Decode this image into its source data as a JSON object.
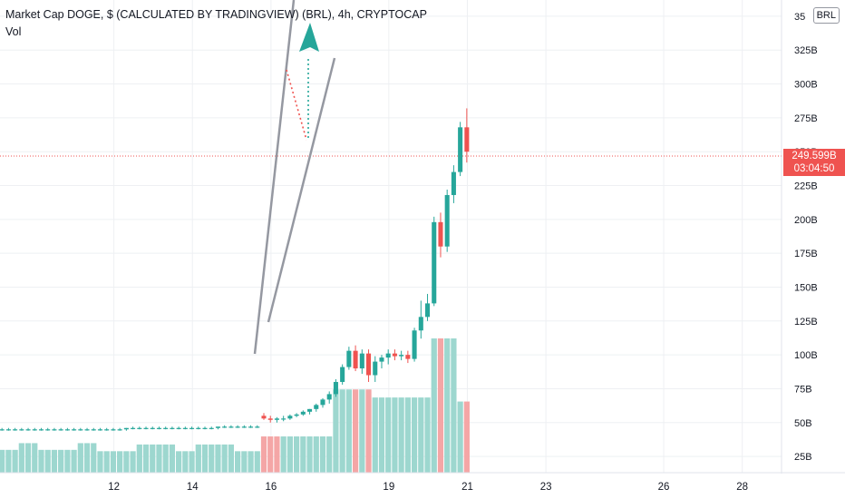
{
  "header": {
    "title": "Market Cap DOGE, $ (CALCULATED BY TRADINGVIEW) (BRL), 4h, CRYPTOCAP",
    "volume_label": "Vol"
  },
  "currency_button": "BRL",
  "last_price": {
    "price": "249.599B",
    "timer": "03:04:50"
  },
  "colors": {
    "up": "#26a69a",
    "down": "#ef5350",
    "up_volume": "#9dd7cf",
    "down_volume": "#f4a6a6",
    "grid": "#eef0f3",
    "trendline": "#9598a1",
    "arrow": "#26a69a"
  },
  "chart_data": {
    "type": "candlestick",
    "title": "Market Cap DOGE, $ (CALCULATED BY TRADINGVIEW) (BRL), 4h, CRYPTOCAP",
    "y_unit": "B",
    "y_ticks": [
      "25B",
      "50B",
      "75B",
      "100B",
      "125B",
      "150B",
      "175B",
      "200B",
      "225B",
      "250B",
      "275B",
      "300B",
      "325B",
      "35"
    ],
    "y_tick_values": [
      25,
      50,
      75,
      100,
      125,
      150,
      175,
      200,
      225,
      250,
      275,
      300,
      325,
      350
    ],
    "ylim": [
      13,
      362
    ],
    "x_ticks": [
      {
        "label": "12",
        "day": 12
      },
      {
        "label": "14",
        "day": 14
      },
      {
        "label": "16",
        "day": 16
      },
      {
        "label": "19",
        "day": 19
      },
      {
        "label": "21",
        "day": 21
      },
      {
        "label": "23",
        "day": 23
      },
      {
        "label": "26",
        "day": 26
      },
      {
        "label": "28",
        "day": 28
      }
    ],
    "xlim": [
      9.1,
      29
    ],
    "candle_interval_days": 0.1667,
    "first_candle_day": 9.15,
    "ohlc": [
      [
        45,
        46,
        44,
        45
      ],
      [
        45,
        46,
        44,
        45
      ],
      [
        45,
        46,
        44,
        45
      ],
      [
        45,
        46,
        44,
        45
      ],
      [
        45,
        46,
        44,
        45
      ],
      [
        45,
        46,
        44,
        45
      ],
      [
        45,
        46,
        44,
        45
      ],
      [
        45,
        46,
        44,
        45
      ],
      [
        45,
        46,
        44,
        45
      ],
      [
        45,
        46,
        44,
        45
      ],
      [
        45,
        46,
        44,
        45
      ],
      [
        45,
        46,
        44,
        45
      ],
      [
        45,
        46,
        44,
        45
      ],
      [
        45,
        46,
        44,
        45
      ],
      [
        45,
        46,
        44,
        45
      ],
      [
        45,
        46,
        44,
        45
      ],
      [
        45,
        46,
        44,
        45
      ],
      [
        45,
        46,
        44,
        45
      ],
      [
        45,
        46,
        44,
        45
      ],
      [
        45,
        46,
        44,
        46
      ],
      [
        46,
        47,
        45,
        46
      ],
      [
        46,
        47,
        45,
        46
      ],
      [
        46,
        47,
        45,
        46
      ],
      [
        46,
        47,
        45,
        46
      ],
      [
        46,
        47,
        45,
        46
      ],
      [
        46,
        47,
        45,
        46
      ],
      [
        46,
        47,
        45,
        46
      ],
      [
        46,
        47,
        45,
        46
      ],
      [
        46,
        47,
        45,
        46
      ],
      [
        46,
        47,
        45,
        46
      ],
      [
        46,
        47,
        45,
        46
      ],
      [
        46,
        47,
        45,
        46
      ],
      [
        46,
        47,
        45,
        46
      ],
      [
        46,
        47,
        45,
        47
      ],
      [
        47,
        48,
        46,
        47
      ],
      [
        47,
        48,
        46,
        47
      ],
      [
        47,
        48,
        46,
        47
      ],
      [
        47,
        48,
        46,
        47
      ],
      [
        47,
        48,
        46,
        47
      ],
      [
        47,
        48,
        46,
        47
      ],
      [
        55,
        57,
        52,
        53
      ],
      [
        53,
        55,
        50,
        52
      ],
      [
        52,
        54,
        50,
        53
      ],
      [
        53,
        55,
        51,
        53
      ],
      [
        53,
        56,
        52,
        55
      ],
      [
        55,
        57,
        54,
        56
      ],
      [
        56,
        59,
        55,
        58
      ],
      [
        58,
        60,
        56,
        60
      ],
      [
        60,
        64,
        58,
        63
      ],
      [
        63,
        68,
        61,
        67
      ],
      [
        67,
        73,
        64,
        71
      ],
      [
        71,
        82,
        69,
        80
      ],
      [
        80,
        93,
        78,
        91
      ],
      [
        91,
        106,
        89,
        103
      ],
      [
        103,
        107,
        88,
        90
      ],
      [
        90,
        104,
        86,
        101
      ],
      [
        101,
        104,
        80,
        85
      ],
      [
        85,
        99,
        80,
        95
      ],
      [
        95,
        100,
        90,
        98
      ],
      [
        98,
        104,
        93,
        101
      ],
      [
        101,
        104,
        96,
        99
      ],
      [
        99,
        103,
        96,
        100
      ],
      [
        100,
        103,
        94,
        97
      ],
      [
        97,
        120,
        95,
        118
      ],
      [
        118,
        140,
        112,
        128
      ],
      [
        128,
        145,
        125,
        138
      ],
      [
        138,
        202,
        136,
        198
      ],
      [
        198,
        205,
        172,
        180
      ],
      [
        180,
        222,
        176,
        218
      ],
      [
        218,
        240,
        212,
        235
      ],
      [
        235,
        272,
        232,
        268
      ],
      [
        268,
        282,
        242,
        250
      ]
    ],
    "volume": [
      [
        17,
        1
      ],
      [
        17,
        1
      ],
      [
        17,
        1
      ],
      [
        22,
        1
      ],
      [
        22,
        1
      ],
      [
        22,
        1
      ],
      [
        17,
        1
      ],
      [
        17,
        1
      ],
      [
        17,
        1
      ],
      [
        17,
        1
      ],
      [
        17,
        1
      ],
      [
        17,
        1
      ],
      [
        22,
        1
      ],
      [
        22,
        1
      ],
      [
        22,
        1
      ],
      [
        16,
        1
      ],
      [
        16,
        1
      ],
      [
        16,
        1
      ],
      [
        16,
        1
      ],
      [
        16,
        1
      ],
      [
        16,
        1
      ],
      [
        21,
        1
      ],
      [
        21,
        1
      ],
      [
        21,
        1
      ],
      [
        21,
        1
      ],
      [
        21,
        1
      ],
      [
        21,
        1
      ],
      [
        16,
        1
      ],
      [
        16,
        1
      ],
      [
        16,
        1
      ],
      [
        21,
        1
      ],
      [
        21,
        1
      ],
      [
        21,
        1
      ],
      [
        21,
        1
      ],
      [
        21,
        1
      ],
      [
        21,
        1
      ],
      [
        16,
        1
      ],
      [
        16,
        1
      ],
      [
        16,
        1
      ],
      [
        16,
        1
      ],
      [
        27,
        0
      ],
      [
        27,
        0
      ],
      [
        27,
        0
      ],
      [
        27,
        1
      ],
      [
        27,
        1
      ],
      [
        27,
        1
      ],
      [
        27,
        1
      ],
      [
        27,
        1
      ],
      [
        27,
        1
      ],
      [
        27,
        1
      ],
      [
        27,
        1
      ],
      [
        62,
        1
      ],
      [
        62,
        1
      ],
      [
        62,
        1
      ],
      [
        62,
        0
      ],
      [
        62,
        1
      ],
      [
        62,
        0
      ],
      [
        56,
        1
      ],
      [
        56,
        1
      ],
      [
        56,
        1
      ],
      [
        56,
        1
      ],
      [
        56,
        1
      ],
      [
        56,
        1
      ],
      [
        56,
        1
      ],
      [
        56,
        1
      ],
      [
        56,
        1
      ],
      [
        100,
        1
      ],
      [
        100,
        0
      ],
      [
        100,
        1
      ],
      [
        100,
        1
      ],
      [
        53,
        1
      ],
      [
        53,
        0
      ]
    ]
  }
}
